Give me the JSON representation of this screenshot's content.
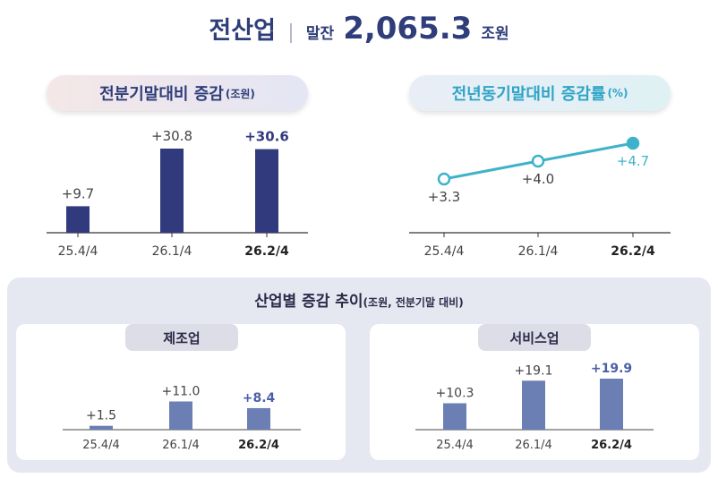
{
  "header": {
    "title": "전산업",
    "label": "말잔",
    "value": "2,065.3",
    "unit": "조원"
  },
  "panel_left": {
    "title": "전분기말대비 증감",
    "unit": "(조원)"
  },
  "panel_right": {
    "title": "전년동기말대비 증감률",
    "unit": "(%)"
  },
  "industry": {
    "title": "산업별 증감 추이",
    "unit": "(조원, 전분기말 대비)",
    "manufacturing_label": "제조업",
    "service_label": "서비스업"
  },
  "colors": {
    "navy": "#323a7e",
    "blue": "#6b7fb4",
    "cyan": "#3fb2cb",
    "dark_text": "#2f3e7a"
  },
  "chart_data": [
    {
      "type": "bar",
      "title": "전분기말대비 증감(조원)",
      "categories": [
        "25.4/4",
        "26.1/4",
        "26.2/4"
      ],
      "labels": [
        "+9.7",
        "+30.8",
        "+30.6"
      ],
      "values": [
        9.7,
        30.8,
        30.6
      ],
      "ylim": [
        0,
        30.8
      ]
    },
    {
      "type": "line",
      "title": "전년동기말대비 증감률(%)",
      "categories": [
        "25.4/4",
        "26.1/4",
        "26.2/4"
      ],
      "labels": [
        "+3.3",
        "+4.0",
        "+4.7"
      ],
      "values": [
        3.3,
        4.0,
        4.7
      ]
    },
    {
      "type": "bar",
      "title": "제조업",
      "categories": [
        "25.4/4",
        "26.1/4",
        "26.2/4"
      ],
      "labels": [
        "+1.5",
        "+11.0",
        "+8.4"
      ],
      "values": [
        1.5,
        11.0,
        8.4
      ]
    },
    {
      "type": "bar",
      "title": "서비스업",
      "categories": [
        "25.4/4",
        "26.1/4",
        "26.2/4"
      ],
      "labels": [
        "+10.3",
        "+19.1",
        "+19.9"
      ],
      "values": [
        10.3,
        19.1,
        19.9
      ]
    }
  ]
}
